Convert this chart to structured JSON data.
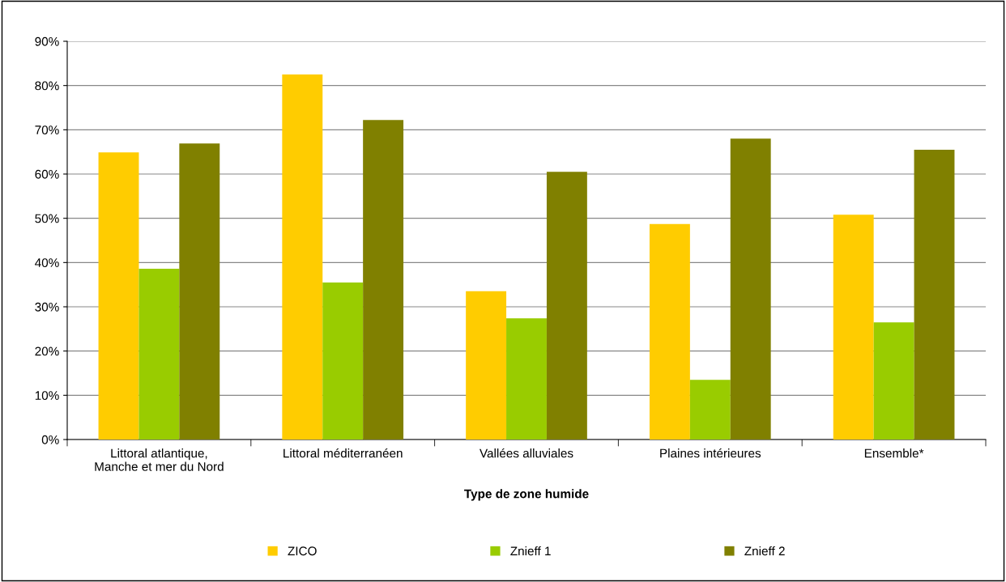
{
  "chart_data": {
    "type": "bar",
    "xlabel": "Type de zone humide",
    "categories": [
      "Littoral atlantique,\nManche et mer du Nord",
      "Littoral méditerranéen",
      "Vallées alluviales",
      "Plaines intérieures",
      "Ensemble*"
    ],
    "series": [
      {
        "name": "ZICO",
        "color": "#ffcc00",
        "values": [
          64.9,
          82.5,
          33.5,
          48.7,
          50.8
        ]
      },
      {
        "name": "Znieff 1",
        "color": "#99cc00",
        "values": [
          38.6,
          35.5,
          27.4,
          13.5,
          26.5
        ]
      },
      {
        "name": "Znieff 2",
        "color": "#808000",
        "values": [
          66.9,
          72.2,
          60.5,
          68.0,
          65.5
        ]
      }
    ],
    "ylim": [
      0,
      90
    ],
    "yticks": [
      {
        "value": 0,
        "label": "0%"
      },
      {
        "value": 10,
        "label": "10%"
      },
      {
        "value": 20,
        "label": "20%"
      },
      {
        "value": 30,
        "label": "30%"
      },
      {
        "value": 40,
        "label": "40%"
      },
      {
        "value": 50,
        "label": "50%"
      },
      {
        "value": 60,
        "label": "60%"
      },
      {
        "value": 70,
        "label": "70%"
      },
      {
        "value": 80,
        "label": "80%"
      },
      {
        "value": 90,
        "label": "90%"
      }
    ],
    "grid": "y",
    "legend": "bottom"
  }
}
